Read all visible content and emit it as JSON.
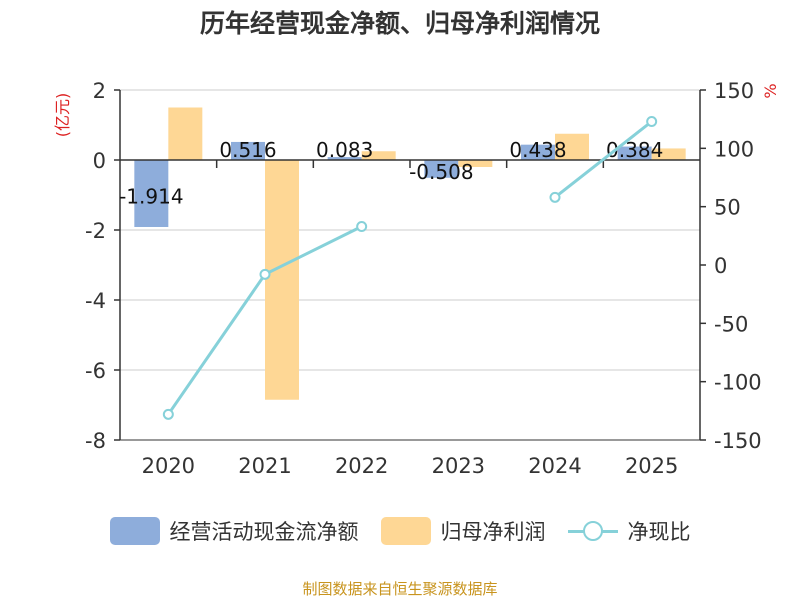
{
  "chart_data": {
    "type": "bar",
    "title": "历年经营现金净额、归母净利润情况",
    "categories": [
      "2020",
      "2021",
      "2022",
      "2023",
      "2024",
      "2025"
    ],
    "series": [
      {
        "name": "经营活动现金流净额",
        "type": "bar",
        "axis": "left",
        "values": [
          -1.914,
          0.516,
          0.083,
          -0.508,
          0.438,
          0.384
        ],
        "labels": [
          "-1.914",
          "0.516",
          "0.083",
          "-0.508",
          "0.438",
          "0.384"
        ]
      },
      {
        "name": "归母净利润",
        "type": "bar",
        "axis": "left",
        "values": [
          1.5,
          -6.85,
          0.25,
          -0.2,
          0.75,
          0.33
        ]
      },
      {
        "name": "净现比",
        "type": "line",
        "axis": "right",
        "values": [
          -128,
          -8,
          33,
          null,
          58,
          123
        ]
      }
    ],
    "ylabel_left": "(亿元)",
    "ylabel_right": "%",
    "ylim_left": [
      -8,
      2
    ],
    "yticks_left": [
      -8,
      -6,
      -4,
      -2,
      0,
      2
    ],
    "ylim_right": [
      -150,
      150
    ],
    "yticks_right": [
      -150,
      -100,
      -50,
      0,
      50,
      100,
      150
    ],
    "grid": true,
    "legend_position": "bottom"
  },
  "colors": {
    "cash_flow": "#8eaddb",
    "net_profit": "#fed795",
    "ratio": "#86d1d9",
    "axis": "#333333",
    "grid": "#cccccc",
    "unit_label": "#dd2222",
    "source": "#c8941e"
  },
  "source_text": "制图数据来自恒生聚源数据库"
}
